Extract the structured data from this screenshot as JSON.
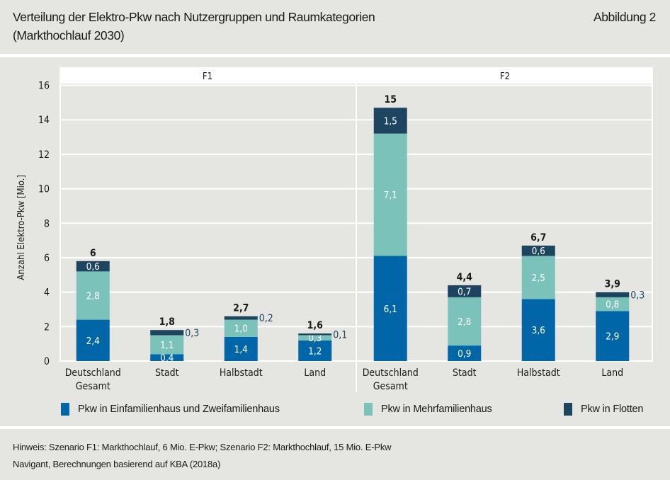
{
  "header": {
    "title_line1": "Verteilung der Elektro-Pkw nach Nutzergruppen und Raumkategorien",
    "title_line2": "(Markthochlauf 2030)",
    "figure_label": "Abbildung 2"
  },
  "footer": {
    "note": "Hinweis: Szenario F1: Markthochlauf, 6 Mio. E-Pkw; Szenario F2: Markthochlauf, 15 Mio. E-Pkw",
    "source": "Navigant, Berechnungen basierend auf KBA (2018a)"
  },
  "colors": {
    "background": "#e5e5e1",
    "einfamilienhaus": "#0066a8",
    "mehrfamilienhaus": "#7bc2ba",
    "flotten": "#1d4560"
  },
  "chart_data": {
    "type": "bar",
    "stacked": true,
    "title": "Verteilung der Elektro-Pkw nach Nutzergruppen und Raumkategorien (Markthochlauf 2030)",
    "xlabel": "",
    "ylabel": "Anzahl Elektro-Pkw [Mio.]",
    "ylim": [
      0,
      16
    ],
    "yticks": [
      0,
      2,
      4,
      6,
      8,
      10,
      12,
      14,
      16
    ],
    "grid": true,
    "legend_position": "bottom",
    "categories": [
      [
        "Deutschland",
        "Gesamt"
      ],
      [
        "Stadt"
      ],
      [
        "Halbstadt"
      ],
      [
        "Land"
      ]
    ],
    "series_names": [
      "Pkw in Einfamilienhaus und Zweifamilienhaus",
      "Pkw in Mehrfamilienhaus",
      "Pkw in Flotten"
    ],
    "facets": [
      {
        "name": "F1",
        "series": [
          {
            "name": "Pkw in Einfamilienhaus und Zweifamilienhaus",
            "values": [
              2.4,
              0.4,
              1.4,
              1.2
            ],
            "labels": [
              "2,4",
              "0,4",
              "1,4",
              "1,2"
            ]
          },
          {
            "name": "Pkw in Mehrfamilienhaus",
            "values": [
              2.8,
              1.1,
              1.0,
              0.3
            ],
            "labels": [
              "2,8",
              "1,1",
              "1,0",
              "0,3"
            ]
          },
          {
            "name": "Pkw in Flotten",
            "values": [
              0.6,
              0.3,
              0.2,
              0.1
            ],
            "labels": [
              "0,6",
              "0,3",
              "0,2",
              "0,1"
            ],
            "label_outside": [
              false,
              true,
              true,
              true
            ]
          }
        ],
        "totals": [
          "6",
          "1,8",
          "2,7",
          "1,6"
        ]
      },
      {
        "name": "F2",
        "series": [
          {
            "name": "Pkw in Einfamilienhaus und Zweifamilienhaus",
            "values": [
              6.1,
              0.9,
              3.6,
              2.9
            ],
            "labels": [
              "6,1",
              "0,9",
              "3,6",
              "2,9"
            ]
          },
          {
            "name": "Pkw in Mehrfamilienhaus",
            "values": [
              7.1,
              2.8,
              2.5,
              0.8
            ],
            "labels": [
              "7,1",
              "2,8",
              "2,5",
              "0,8"
            ]
          },
          {
            "name": "Pkw in Flotten",
            "values": [
              1.5,
              0.7,
              0.6,
              0.3
            ],
            "labels": [
              "1,5",
              "0,7",
              "0,6",
              "0,3"
            ],
            "label_outside": [
              false,
              false,
              false,
              true
            ]
          }
        ],
        "totals": [
          "15",
          "4,4",
          "6,7",
          "3,9"
        ]
      }
    ]
  }
}
